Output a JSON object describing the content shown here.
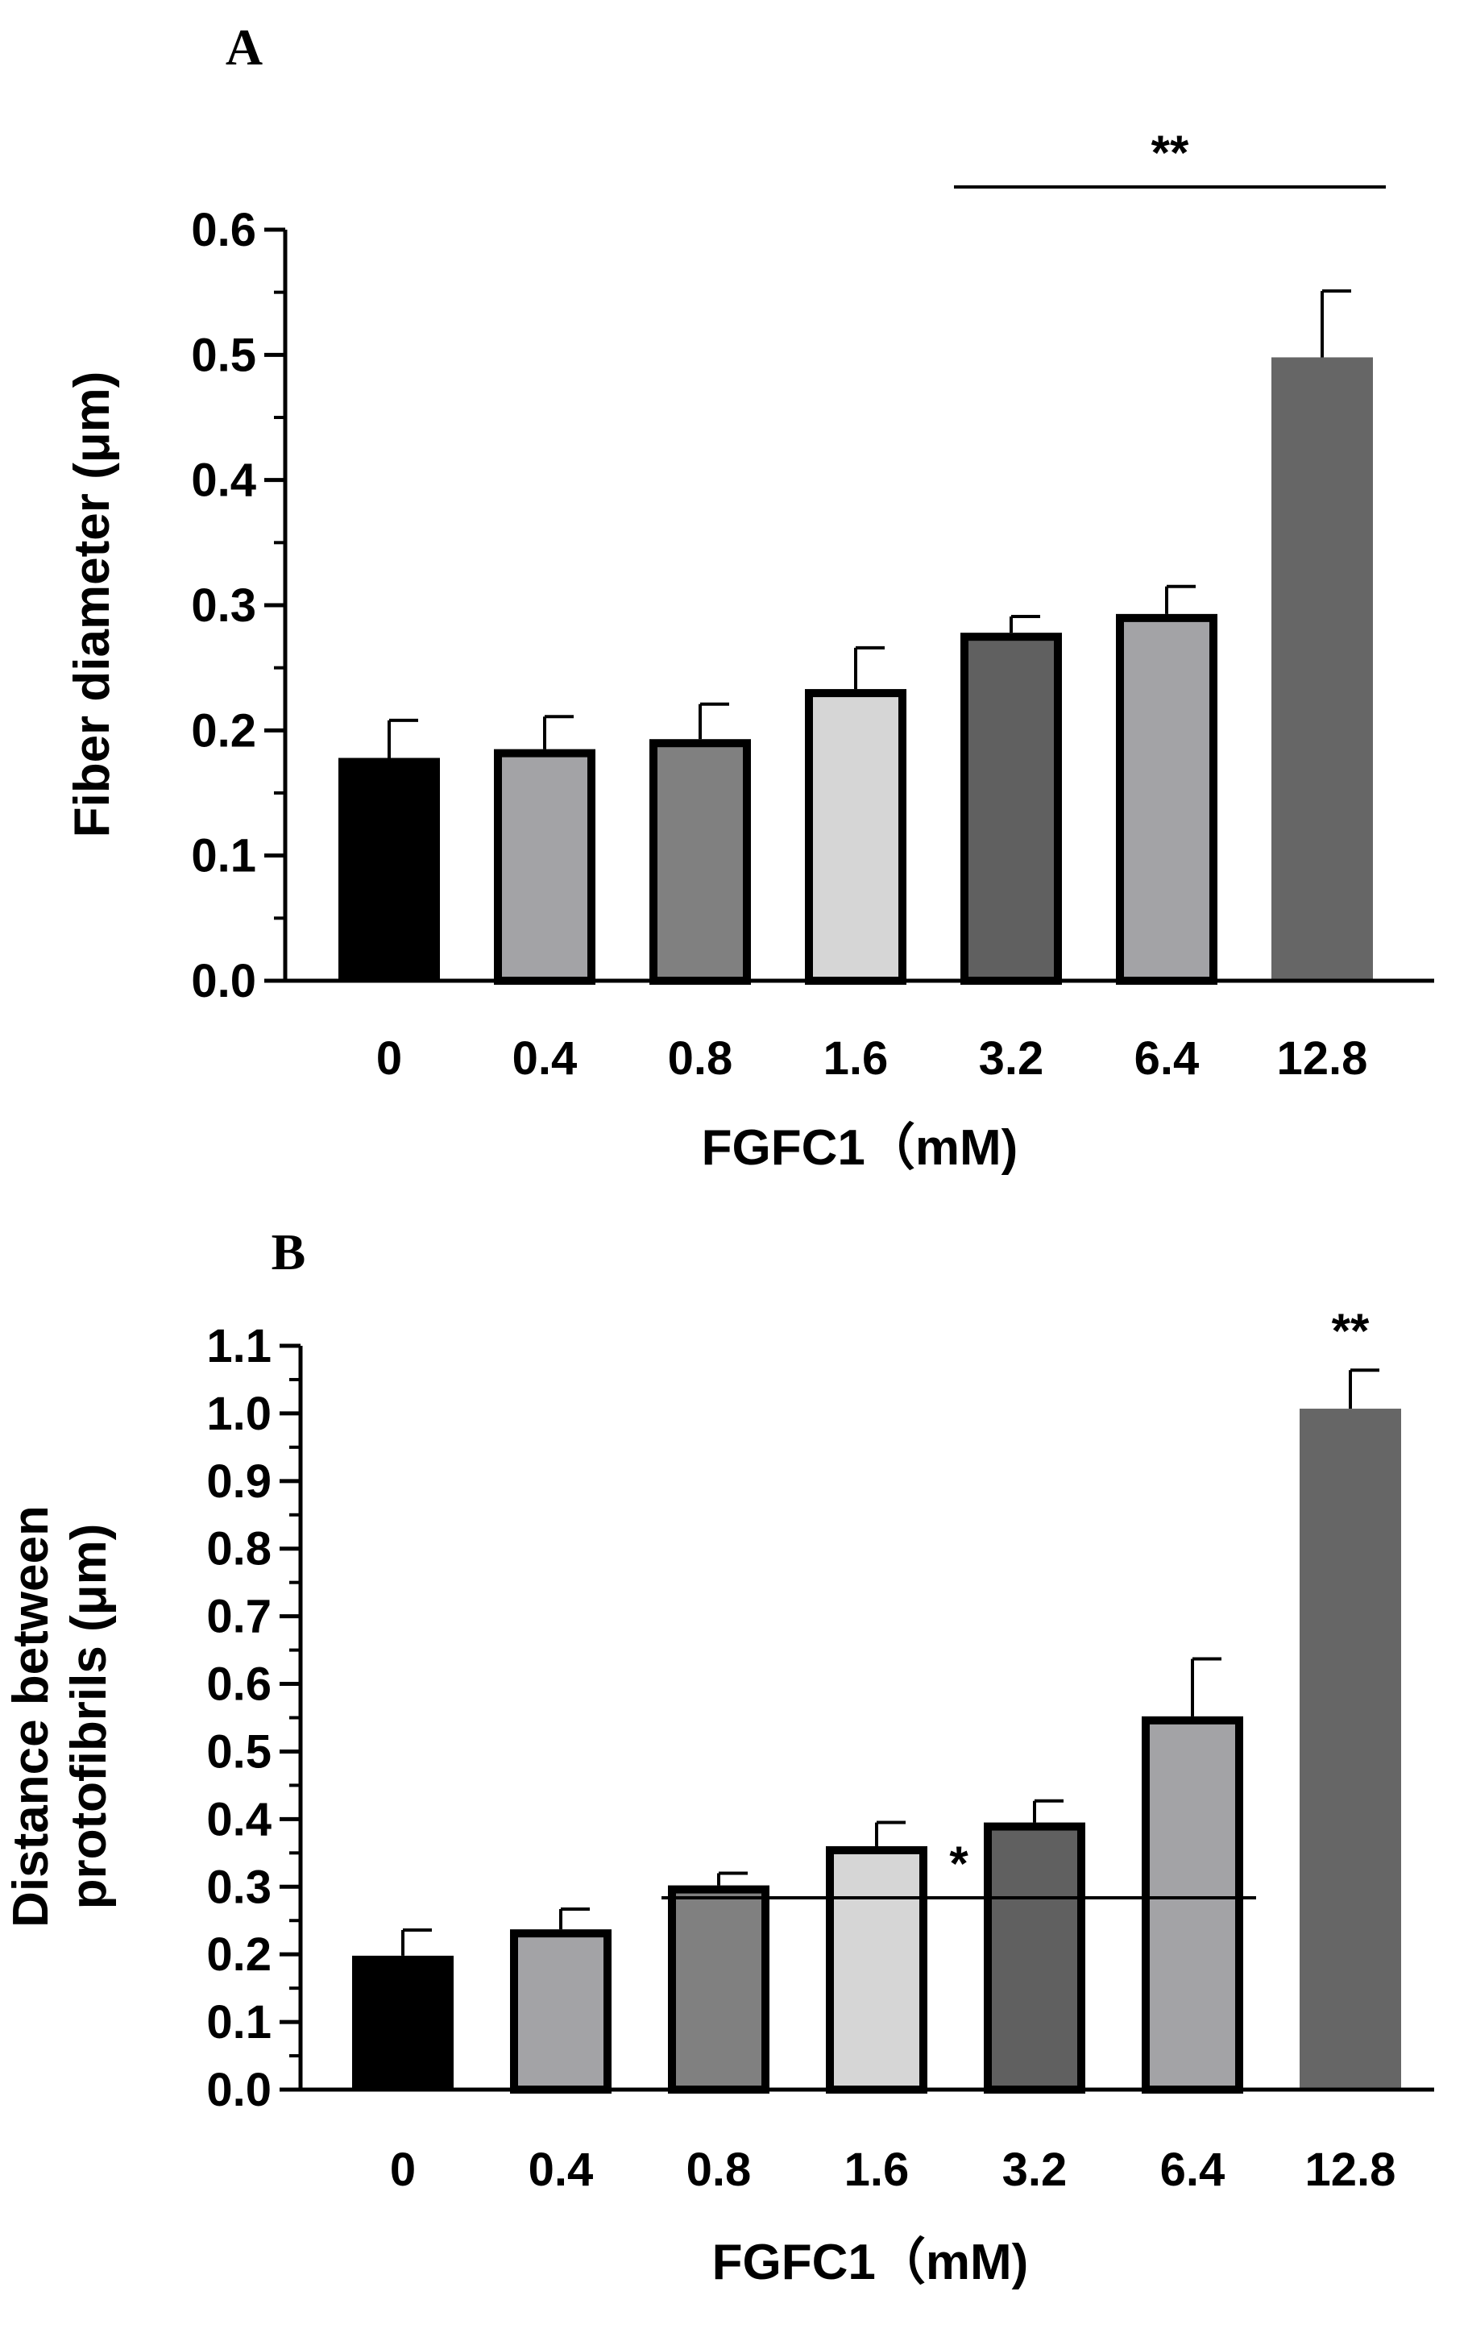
{
  "chart_data": [
    {
      "panel_label": "A",
      "type": "bar",
      "categories": [
        "0",
        "0.4",
        "0.8",
        "1.6",
        "3.2",
        "6.4",
        "12.8"
      ],
      "values": [
        0.178,
        0.185,
        0.193,
        0.233,
        0.278,
        0.293,
        0.498
      ],
      "errors": [
        0.03,
        0.026,
        0.028,
        0.033,
        0.013,
        0.022,
        0.053
      ],
      "bar_colors": [
        "#000000",
        "#a3a3a6",
        "#808080",
        "#d6d6d6",
        "#606060",
        "#a3a3a6",
        "#666666"
      ],
      "bar_outlined": [
        false,
        true,
        true,
        true,
        true,
        true,
        false
      ],
      "xlabel": "FGFC1（mM)",
      "ylabel": "Fiber diameter (μm)",
      "ylabel_lines": [
        "Fiber diameter (μm)"
      ],
      "ylim": [
        0,
        0.6
      ],
      "yticks": [
        "0.0",
        "0.1",
        "0.2",
        "0.3",
        "0.4",
        "0.5",
        "0.6"
      ],
      "significance": [
        {
          "text": "**",
          "from_category": "3.2",
          "to_category": "12.8",
          "line": true
        }
      ]
    },
    {
      "panel_label": "B",
      "type": "bar",
      "categories": [
        "0",
        "0.4",
        "0.8",
        "1.6",
        "3.2",
        "6.4",
        "12.8"
      ],
      "values": [
        0.198,
        0.237,
        0.302,
        0.36,
        0.395,
        0.552,
        1.007
      ],
      "errors": [
        0.038,
        0.03,
        0.018,
        0.035,
        0.032,
        0.085,
        0.057
      ],
      "bar_colors": [
        "#000000",
        "#a3a3a6",
        "#808080",
        "#d6d6d6",
        "#606060",
        "#a3a3a6",
        "#666666"
      ],
      "bar_outlined": [
        false,
        true,
        true,
        true,
        true,
        true,
        false
      ],
      "xlabel": "FGFC1（mM)",
      "ylabel": "Distance between protofibrils (μm)",
      "ylabel_lines": [
        "Distance between",
        "protofibrils (μm)"
      ],
      "ylim": [
        0,
        1.1
      ],
      "yticks": [
        "0.0",
        "0.1",
        "0.2",
        "0.3",
        "0.4",
        "0.5",
        "0.6",
        "0.7",
        "0.8",
        "0.9",
        "1.0",
        "1.1"
      ],
      "significance": [
        {
          "text": "*",
          "from_category": "0.8",
          "to_category": "6.4",
          "line": true
        },
        {
          "text": "**",
          "from_category": "12.8",
          "to_category": "12.8",
          "line": false
        }
      ]
    }
  ]
}
